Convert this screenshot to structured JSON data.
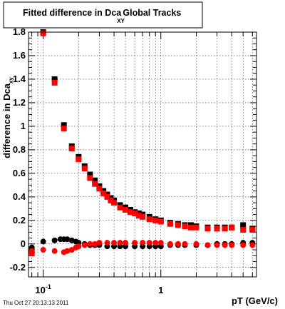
{
  "title": {
    "main": "Fitted difference in Dca",
    "sub": "XY",
    "suffix": " Global Tracks"
  },
  "footer": "Thu Oct 27 20:13:13 2011",
  "colors": {
    "black_series": "#000000",
    "red_series": "#ff0000"
  },
  "chart_data": {
    "type": "scatter",
    "xlabel": "pT (GeV/c)",
    "ylabel": {
      "main": "difference in Dca",
      "sub": "xy"
    },
    "xscale": "log",
    "xlim": [
      0.075,
      6.5
    ],
    "ylim": [
      -0.28,
      1.8
    ],
    "x_tick_labels": [
      {
        "value": 0.1,
        "base": "10",
        "exp": "-1"
      },
      {
        "value": 1,
        "base": "1",
        "exp": ""
      }
    ],
    "y_ticks": [
      -0.2,
      0,
      0.2,
      0.4,
      0.6,
      0.8,
      1,
      1.2,
      1.4,
      1.6,
      1.8
    ],
    "y_tick_labels": [
      "-0.2",
      "0",
      "0.2",
      "0.4",
      "0.6",
      "0.8",
      "1",
      "1.2",
      "1.4",
      "1.6",
      "1.8"
    ],
    "grid": true,
    "series": [
      {
        "color": "#000000",
        "marker": "square",
        "y_error": 0.012,
        "x": [
          0.08,
          0.1,
          0.125,
          0.15,
          0.175,
          0.2,
          0.225,
          0.25,
          0.275,
          0.3,
          0.325,
          0.35,
          0.375,
          0.4,
          0.45,
          0.5,
          0.55,
          0.6,
          0.65,
          0.7,
          0.8,
          0.9,
          1.0,
          1.2,
          1.4,
          1.6,
          1.8,
          2.0,
          2.5,
          3.0,
          3.5,
          4.0,
          5.0,
          6.0
        ],
        "y": [
          -0.06,
          1.8,
          1.4,
          1.01,
          0.83,
          0.74,
          0.66,
          0.59,
          0.54,
          0.49,
          0.45,
          0.42,
          0.39,
          0.37,
          0.33,
          0.31,
          0.29,
          0.27,
          0.26,
          0.25,
          0.23,
          0.21,
          0.2,
          0.18,
          0.17,
          0.16,
          0.16,
          0.15,
          0.14,
          0.14,
          0.14,
          0.14,
          0.16,
          0.13
        ]
      },
      {
        "color": "#ff0000",
        "marker": "square",
        "y_error": 0.012,
        "x": [
          0.08,
          0.1,
          0.125,
          0.15,
          0.175,
          0.2,
          0.225,
          0.25,
          0.275,
          0.3,
          0.325,
          0.35,
          0.375,
          0.4,
          0.45,
          0.5,
          0.55,
          0.6,
          0.65,
          0.7,
          0.8,
          0.9,
          1.0,
          1.2,
          1.4,
          1.6,
          1.8,
          2.0,
          2.5,
          3.0,
          3.5,
          4.0,
          5.0,
          6.0
        ],
        "y": [
          -0.08,
          1.79,
          1.37,
          0.98,
          0.81,
          0.72,
          0.64,
          0.56,
          0.51,
          0.47,
          0.43,
          0.4,
          0.37,
          0.35,
          0.31,
          0.29,
          0.27,
          0.26,
          0.24,
          0.23,
          0.21,
          0.2,
          0.19,
          0.17,
          0.16,
          0.15,
          0.14,
          0.14,
          0.13,
          0.13,
          0.13,
          0.14,
          0.12,
          0.12
        ]
      },
      {
        "color": "#000000",
        "marker": "circle",
        "y_error": 0.008,
        "x": [
          0.08,
          0.1,
          0.125,
          0.14,
          0.15,
          0.16,
          0.175,
          0.19,
          0.2,
          0.225,
          0.25,
          0.275,
          0.3,
          0.35,
          0.4,
          0.45,
          0.5,
          0.6,
          0.7,
          0.8,
          0.9,
          1.0,
          1.2,
          1.4,
          1.6,
          2.0,
          2.5,
          3.0,
          3.5,
          4.0,
          5.0,
          6.0
        ],
        "y": [
          -0.03,
          0.02,
          0.03,
          0.04,
          0.04,
          0.04,
          0.03,
          0.02,
          0.01,
          0.0,
          -0.01,
          -0.01,
          -0.01,
          -0.02,
          -0.02,
          -0.02,
          -0.02,
          -0.02,
          -0.02,
          -0.02,
          -0.02,
          -0.02,
          -0.01,
          -0.01,
          -0.01,
          -0.01,
          -0.01,
          0.0,
          0.0,
          0.0,
          0.01,
          0.01
        ]
      },
      {
        "color": "#ff0000",
        "marker": "circle",
        "y_error": 0.008,
        "x": [
          0.08,
          0.1,
          0.125,
          0.15,
          0.16,
          0.175,
          0.19,
          0.2,
          0.225,
          0.25,
          0.275,
          0.3,
          0.35,
          0.4,
          0.45,
          0.5,
          0.6,
          0.7,
          0.8,
          0.9,
          1.0,
          1.2,
          1.4,
          1.6,
          2.0,
          2.5,
          3.0,
          3.5,
          4.0,
          5.0,
          6.0
        ],
        "y": [
          -0.06,
          -0.05,
          -0.06,
          -0.07,
          -0.06,
          -0.05,
          -0.03,
          -0.02,
          -0.01,
          0.0,
          0.0,
          0.01,
          0.01,
          0.01,
          0.01,
          0.01,
          0.01,
          0.01,
          0.01,
          0.01,
          0.01,
          0.0,
          0.0,
          0.0,
          0.0,
          -0.01,
          -0.01,
          -0.01,
          -0.01,
          -0.01,
          -0.01
        ]
      }
    ]
  }
}
